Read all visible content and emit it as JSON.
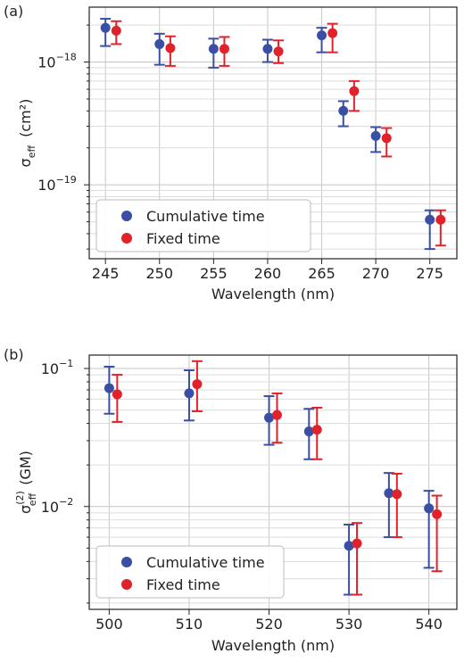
{
  "chart_data": [
    {
      "type": "scatter",
      "panel_label": "(a)",
      "xlabel": "Wavelength (nm)",
      "ylabel_main": "σ",
      "ylabel_sub": "eff",
      "ylabel_unit": "(cm²)",
      "yscale": "log",
      "xlim": [
        243.5,
        277.5
      ],
      "ylim": [
        2.5e-20,
        2.8e-18
      ],
      "xticks": [
        245,
        250,
        255,
        260,
        265,
        270,
        275
      ],
      "yticks": [
        {
          "value": 1e-18,
          "mantissa": "10",
          "exp": "−18"
        },
        {
          "value": 1e-19,
          "mantissa": "10",
          "exp": "−19"
        }
      ],
      "grid": true,
      "legend_position": "lower-left",
      "series": [
        {
          "name": "Cumulative time",
          "color": "#3a4fa3",
          "points": [
            {
              "x": 245,
              "y": 1.9e-18,
              "lo": 1.35e-18,
              "hi": 2.25e-18
            },
            {
              "x": 250,
              "y": 1.4e-18,
              "lo": 9.5e-19,
              "hi": 1.7e-18
            },
            {
              "x": 255,
              "y": 1.28e-18,
              "lo": 9e-19,
              "hi": 1.55e-18
            },
            {
              "x": 260,
              "y": 1.28e-18,
              "lo": 1e-18,
              "hi": 1.52e-18
            },
            {
              "x": 265,
              "y": 1.65e-18,
              "lo": 1.2e-18,
              "hi": 1.9e-18
            },
            {
              "x": 267,
              "y": 4e-19,
              "lo": 3e-19,
              "hi": 4.8e-19
            },
            {
              "x": 270,
              "y": 2.5e-19,
              "lo": 1.85e-19,
              "hi": 2.95e-19
            },
            {
              "x": 275,
              "y": 5.2e-20,
              "lo": 3e-20,
              "hi": 6.2e-20
            }
          ]
        },
        {
          "name": "Fixed time",
          "color": "#e0222b",
          "points": [
            {
              "x": 246,
              "y": 1.8e-18,
              "lo": 1.4e-18,
              "hi": 2.15e-18
            },
            {
              "x": 251,
              "y": 1.3e-18,
              "lo": 9.3e-19,
              "hi": 1.62e-18
            },
            {
              "x": 256,
              "y": 1.28e-18,
              "lo": 9.3e-19,
              "hi": 1.6e-18
            },
            {
              "x": 261,
              "y": 1.22e-18,
              "lo": 9.8e-19,
              "hi": 1.5e-18
            },
            {
              "x": 266,
              "y": 1.72e-18,
              "lo": 1.2e-18,
              "hi": 2.05e-18
            },
            {
              "x": 268,
              "y": 5.8e-19,
              "lo": 4e-19,
              "hi": 7e-19
            },
            {
              "x": 271,
              "y": 2.4e-19,
              "lo": 1.7e-19,
              "hi": 2.9e-19
            },
            {
              "x": 276,
              "y": 5.2e-20,
              "lo": 3.2e-20,
              "hi": 6.2e-20
            }
          ]
        }
      ]
    },
    {
      "type": "scatter",
      "panel_label": "(b)",
      "xlabel": "Wavelength (nm)",
      "ylabel_main": "σ",
      "ylabel_sub": "eff",
      "ylabel_sup": "(2)",
      "ylabel_unit": "(GM)",
      "yscale": "log",
      "xlim": [
        497.5,
        543.5
      ],
      "ylim": [
        0.0018,
        0.125
      ],
      "xticks": [
        500,
        510,
        520,
        530,
        540
      ],
      "yticks": [
        {
          "value": 0.1,
          "mantissa": "10",
          "exp": "−1"
        },
        {
          "value": 0.01,
          "mantissa": "10",
          "exp": "−2"
        }
      ],
      "grid": true,
      "legend_position": "lower-left",
      "series": [
        {
          "name": "Cumulative time",
          "color": "#3a4fa3",
          "points": [
            {
              "x": 500,
              "y": 0.072,
              "lo": 0.047,
              "hi": 0.103
            },
            {
              "x": 510,
              "y": 0.066,
              "lo": 0.042,
              "hi": 0.097
            },
            {
              "x": 520,
              "y": 0.044,
              "lo": 0.028,
              "hi": 0.063
            },
            {
              "x": 525,
              "y": 0.035,
              "lo": 0.022,
              "hi": 0.051
            },
            {
              "x": 530,
              "y": 0.0052,
              "lo": 0.0023,
              "hi": 0.0074
            },
            {
              "x": 535,
              "y": 0.0125,
              "lo": 0.006,
              "hi": 0.0175
            },
            {
              "x": 540,
              "y": 0.0097,
              "lo": 0.0036,
              "hi": 0.013
            }
          ]
        },
        {
          "name": "Fixed time",
          "color": "#e0222b",
          "points": [
            {
              "x": 501,
              "y": 0.065,
              "lo": 0.041,
              "hi": 0.09
            },
            {
              "x": 511,
              "y": 0.077,
              "lo": 0.049,
              "hi": 0.113
            },
            {
              "x": 521,
              "y": 0.046,
              "lo": 0.029,
              "hi": 0.066
            },
            {
              "x": 526,
              "y": 0.036,
              "lo": 0.022,
              "hi": 0.052
            },
            {
              "x": 531,
              "y": 0.0054,
              "lo": 0.0023,
              "hi": 0.0076
            },
            {
              "x": 536,
              "y": 0.0123,
              "lo": 0.006,
              "hi": 0.0173
            },
            {
              "x": 541,
              "y": 0.0088,
              "lo": 0.0034,
              "hi": 0.012
            }
          ]
        }
      ]
    }
  ]
}
